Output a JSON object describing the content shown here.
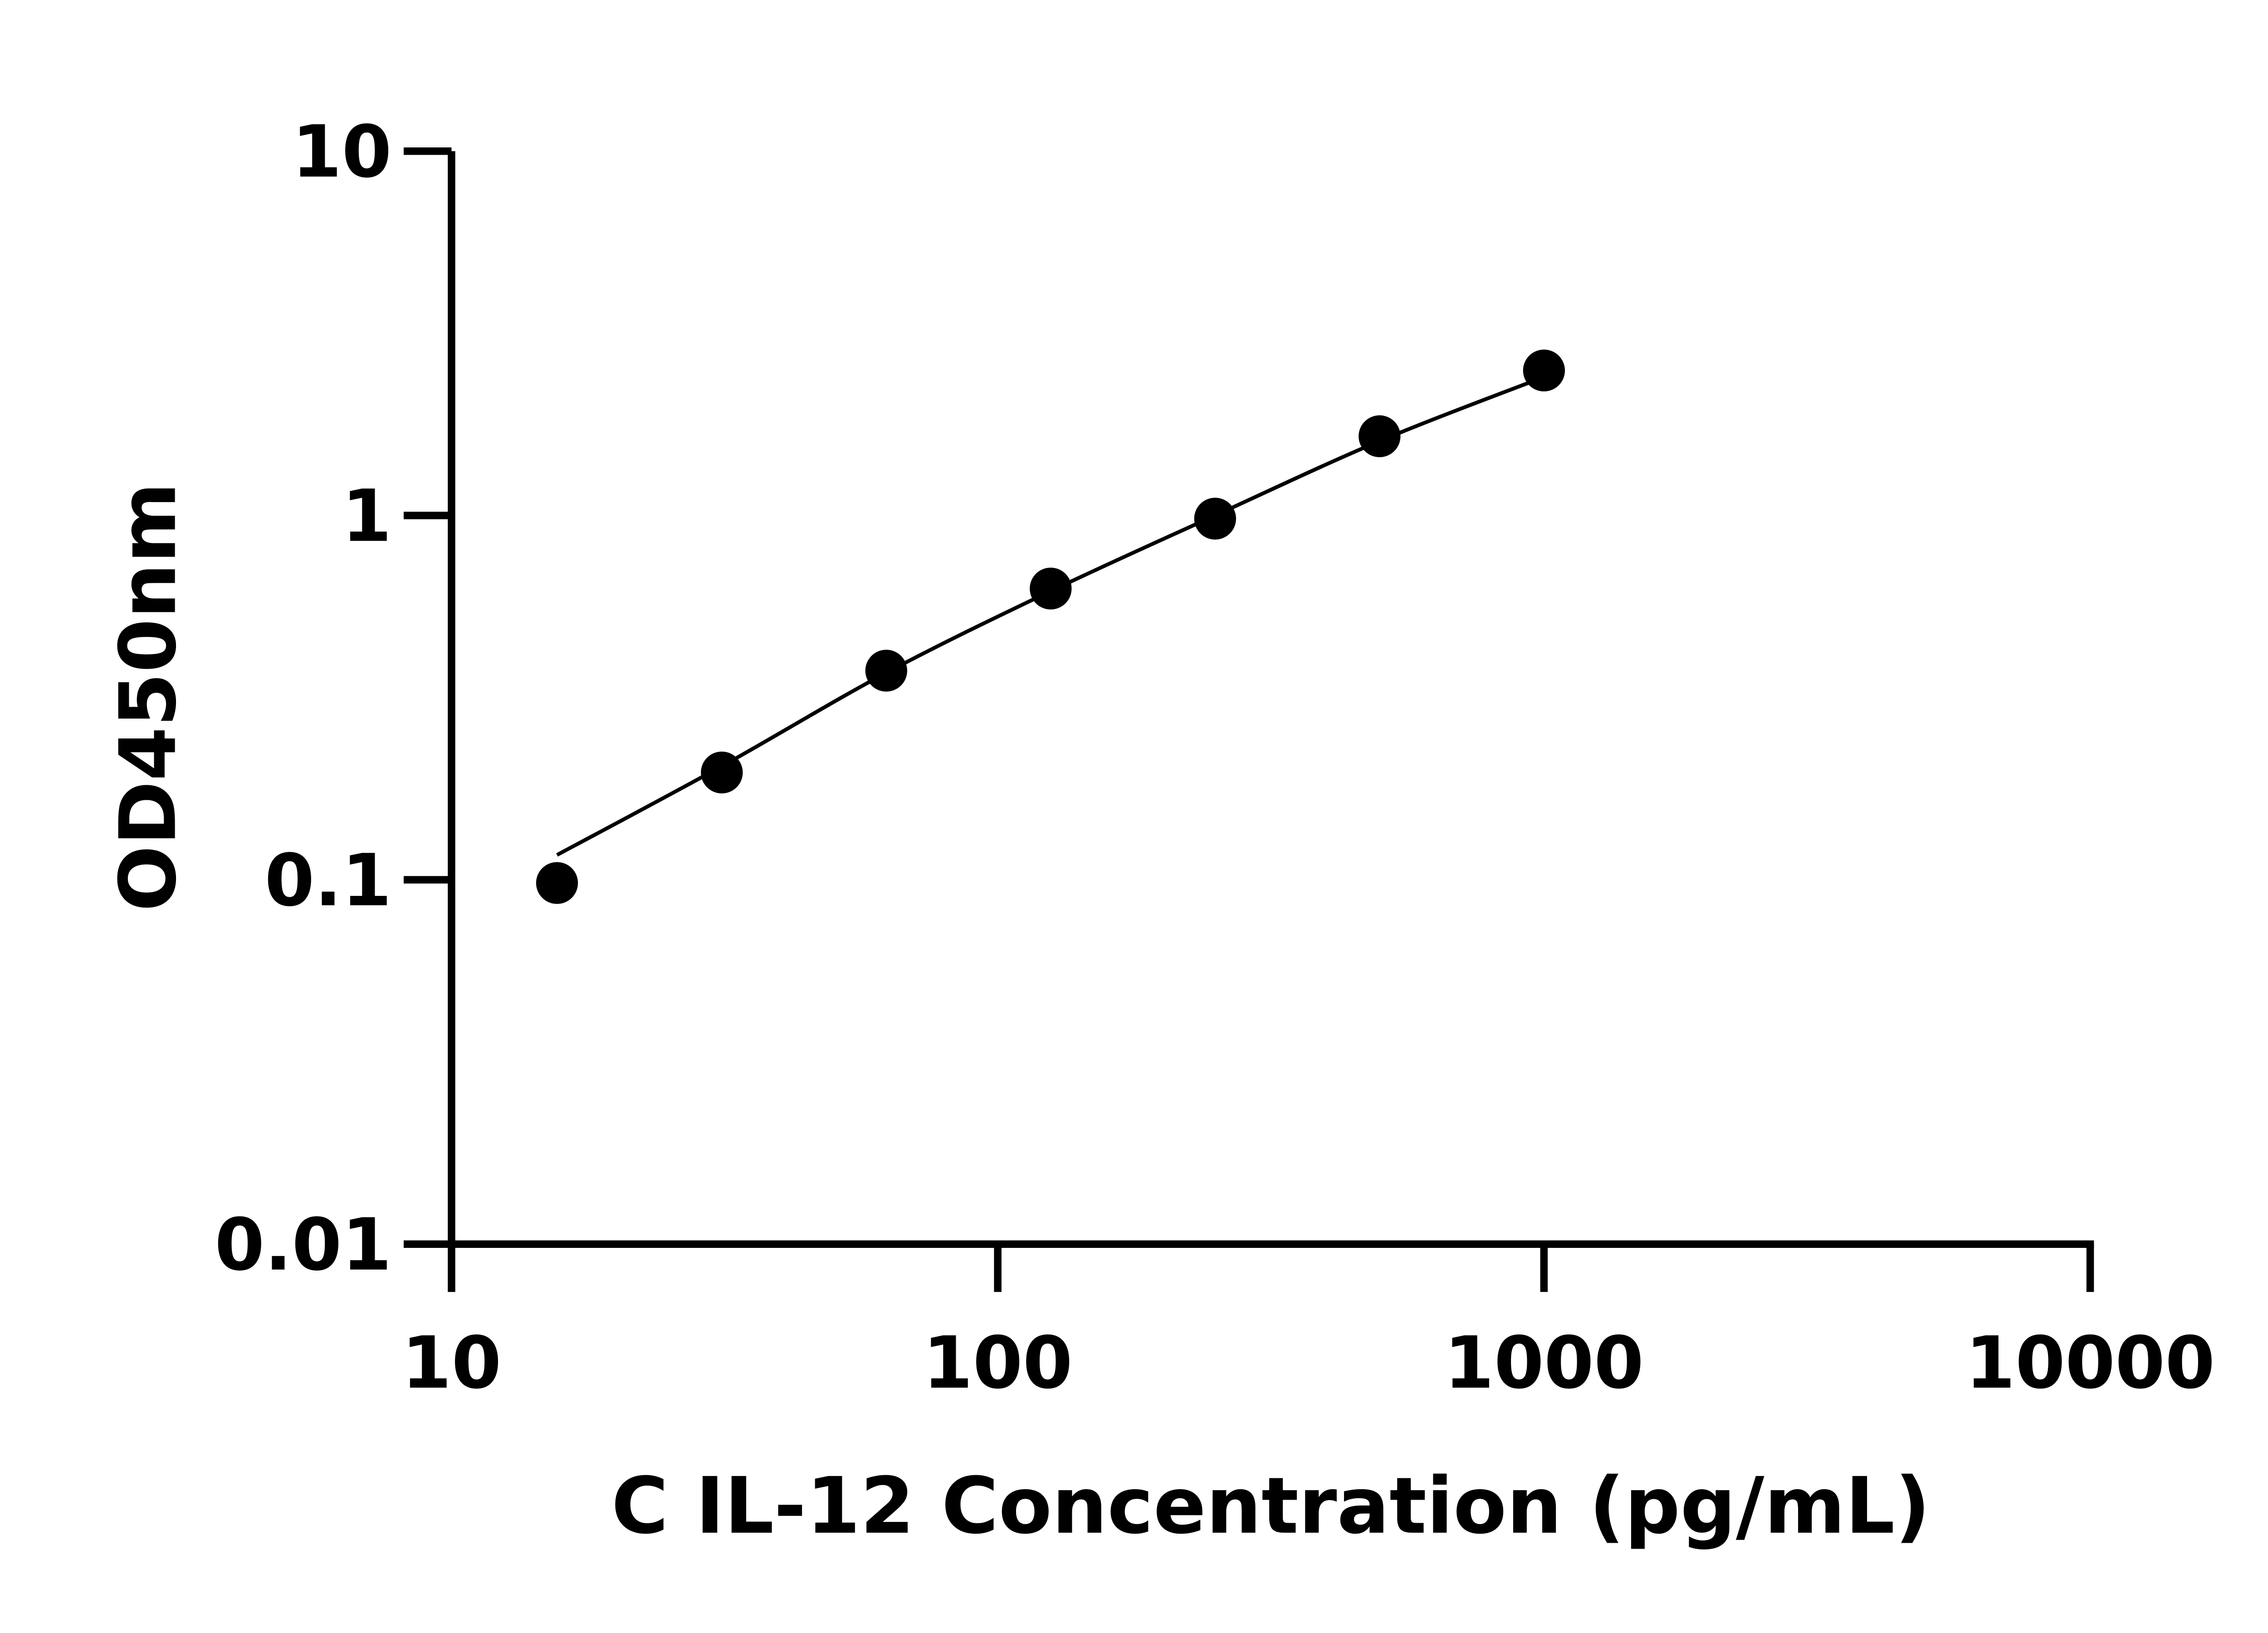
{
  "chart_data": {
    "type": "scatter",
    "title": "",
    "xlabel": "C IL-12 Concentration (pg/mL)",
    "ylabel": "OD450nm",
    "xscale": "log",
    "yscale": "log",
    "xlim": [
      10,
      10000
    ],
    "ylim": [
      0.01,
      10
    ],
    "xticks": [
      10,
      100,
      1000,
      10000
    ],
    "xtick_labels": [
      "10",
      "100",
      "1000",
      "10000"
    ],
    "yticks": [
      0.01,
      0.1,
      1,
      10
    ],
    "ytick_labels": [
      "0.01",
      "0.1",
      "1",
      "10"
    ],
    "grid": false,
    "legend": "none",
    "series": [
      {
        "x": [
          15.6,
          31.25,
          62.5,
          125,
          250,
          500,
          1000
        ],
        "y": [
          0.098,
          0.197,
          0.375,
          0.63,
          0.98,
          1.65,
          2.5
        ],
        "color": "#000000",
        "marker": "circle"
      }
    ],
    "fit_curve": {
      "x": [
        15.6,
        31.25,
        62.5,
        125,
        250,
        500,
        1000
      ],
      "y": [
        0.117,
        0.205,
        0.37,
        0.62,
        1.0,
        1.6,
        2.4
      ],
      "color": "#000000"
    }
  }
}
